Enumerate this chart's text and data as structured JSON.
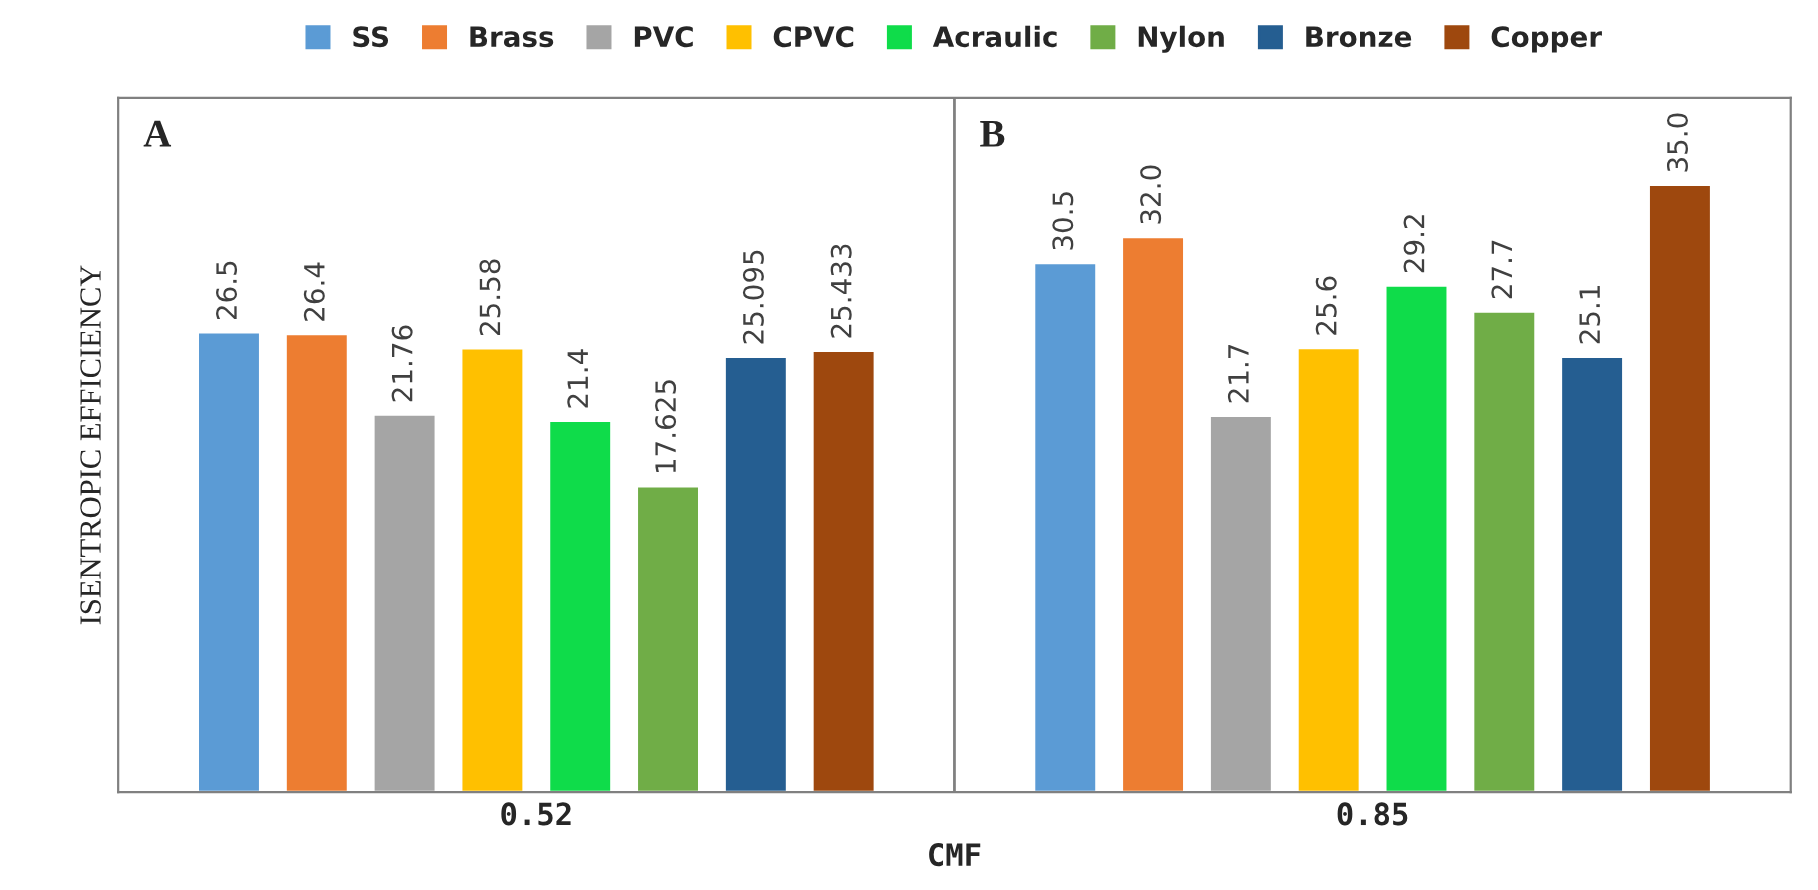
{
  "chart_data": {
    "type": "bar",
    "xlabel": "CMF",
    "ylabel": "ISENTROPIC EFFICIENCY",
    "categories": [
      "0.52",
      "0.85"
    ],
    "series": [
      {
        "name": "SS",
        "color": "#5b9bd5",
        "values": [
          26.5,
          30.5
        ],
        "value_labels": [
          "26.5",
          "30.5"
        ]
      },
      {
        "name": "Brass",
        "color": "#ed7d31",
        "values": [
          26.4,
          32.0
        ],
        "value_labels": [
          "26.4",
          "32.0"
        ]
      },
      {
        "name": "PVC",
        "color": "#a5a5a5",
        "values": [
          21.76,
          21.7
        ],
        "value_labels": [
          "21.76",
          "21.7"
        ]
      },
      {
        "name": "CPVC",
        "color": "#ffc000",
        "values": [
          25.58,
          25.6
        ],
        "value_labels": [
          "25.58",
          "25.6"
        ]
      },
      {
        "name": "Acraulic",
        "color": "#0fdc4a",
        "values": [
          21.4,
          29.2
        ],
        "value_labels": [
          "21.4",
          "29.2"
        ]
      },
      {
        "name": "Nylon",
        "color": "#70ad47",
        "values": [
          17.625,
          27.7
        ],
        "value_labels": [
          "17.625",
          "27.7"
        ]
      },
      {
        "name": "Bronze",
        "color": "#255e91",
        "values": [
          25.095,
          25.1
        ],
        "value_labels": [
          "25.095",
          "25.1"
        ]
      },
      {
        "name": "Copper",
        "color": "#9e480e",
        "values": [
          25.433,
          35.0
        ],
        "value_labels": [
          "25.433",
          "35.0"
        ]
      }
    ],
    "ylim": [
      0,
      40
    ],
    "tick_labels": "x",
    "grid": false,
    "legend": "top",
    "annotations": [
      "A",
      "B"
    ]
  }
}
